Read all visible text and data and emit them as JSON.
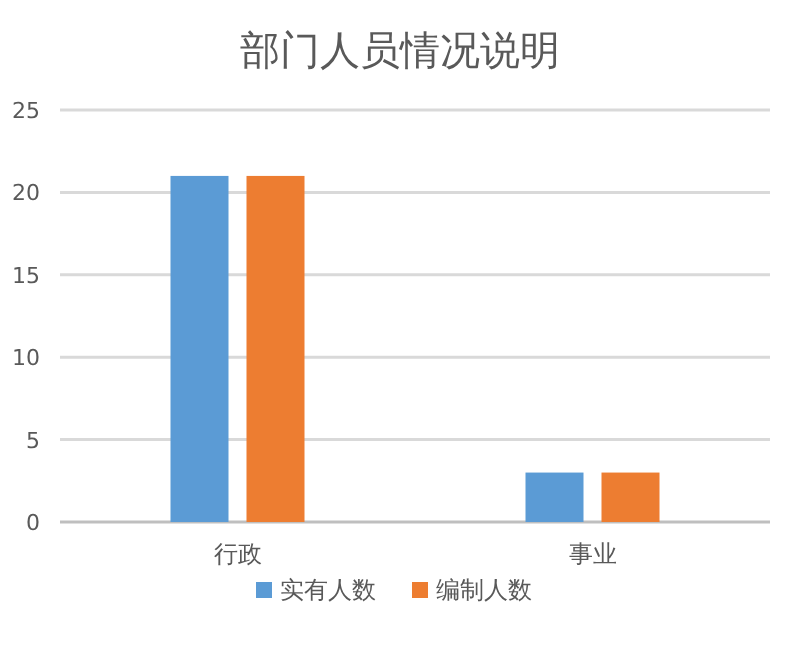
{
  "chart_data": {
    "type": "bar",
    "title": "部门人员情况说明",
    "categories": [
      "行政",
      "事业"
    ],
    "series": [
      {
        "name": "实有人数",
        "color": "#5b9bd5",
        "values": [
          21,
          3
        ]
      },
      {
        "name": "编制人数",
        "color": "#ed7d31",
        "values": [
          21,
          3
        ]
      }
    ],
    "ylim": [
      0,
      25
    ],
    "yticks": [
      0,
      5,
      10,
      15,
      20,
      25
    ],
    "grid": "y",
    "legend": "bottom"
  }
}
